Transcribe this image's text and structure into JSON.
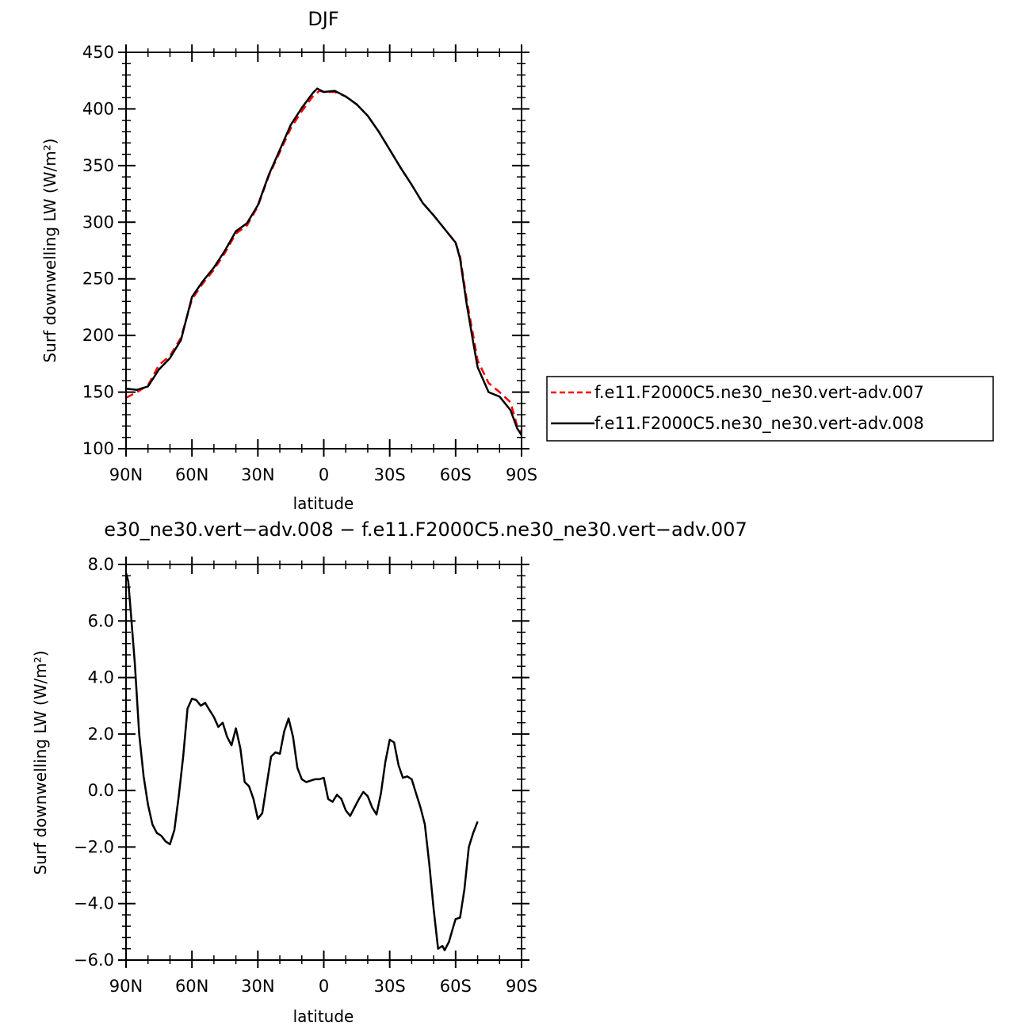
{
  "chart_data": [
    {
      "type": "line",
      "title": "DJF",
      "xlabel": "latitude",
      "ylabel": "Surf downwelling LW (W/m²)",
      "xlim": [
        90,
        -90
      ],
      "ylim": [
        100,
        450
      ],
      "x_ticks": [
        {
          "value": 90,
          "label": "90N"
        },
        {
          "value": 60,
          "label": "60N"
        },
        {
          "value": 30,
          "label": "30N"
        },
        {
          "value": 0,
          "label": "0"
        },
        {
          "value": -30,
          "label": "30S"
        },
        {
          "value": -60,
          "label": "60S"
        },
        {
          "value": -90,
          "label": "90S"
        }
      ],
      "y_ticks": [
        {
          "value": 100,
          "label": "100"
        },
        {
          "value": 150,
          "label": "150"
        },
        {
          "value": 200,
          "label": "200"
        },
        {
          "value": 250,
          "label": "250"
        },
        {
          "value": 300,
          "label": "300"
        },
        {
          "value": 350,
          "label": "350"
        },
        {
          "value": 400,
          "label": "400"
        },
        {
          "value": 450,
          "label": "450"
        }
      ],
      "legend_position": "right",
      "series": [
        {
          "name": "f.e11.F2000C5.ne30_ne30.vert-adv.007",
          "color": "#ff0000",
          "dash": "dashed",
          "points": [
            [
              90,
              145
            ],
            [
              85,
              150
            ],
            [
              80,
              156
            ],
            [
              75,
              174
            ],
            [
              70,
              182
            ],
            [
              65,
              198
            ],
            [
              60,
              232
            ],
            [
              55,
              246
            ],
            [
              50,
              258
            ],
            [
              45,
              273
            ],
            [
              40,
              290
            ],
            [
              35,
              297
            ],
            [
              30,
              314
            ],
            [
              25,
              341
            ],
            [
              20,
              362
            ],
            [
              15,
              383
            ],
            [
              10,
              398
            ],
            [
              5,
              411
            ],
            [
              2,
              416
            ],
            [
              0,
              415
            ],
            [
              -5,
              415
            ],
            [
              -10,
              411
            ],
            [
              -15,
              404
            ],
            [
              -20,
              394
            ],
            [
              -25,
              380
            ],
            [
              -30,
              364
            ],
            [
              -35,
              348
            ],
            [
              -40,
              333
            ],
            [
              -45,
              317
            ],
            [
              -50,
              306
            ],
            [
              -55,
              294
            ],
            [
              -60,
              282
            ],
            [
              -62,
              270
            ],
            [
              -65,
              232
            ],
            [
              -68,
              200
            ],
            [
              -70,
              178
            ],
            [
              -75,
              158
            ],
            [
              -80,
              150
            ],
            [
              -85,
              141
            ],
            [
              -88,
              120
            ],
            [
              -90,
              113
            ]
          ]
        },
        {
          "name": "f.e11.F2000C5.ne30_ne30.vert-adv.008",
          "color": "#000000",
          "dash": "solid",
          "points": [
            [
              90,
              153
            ],
            [
              85,
              152
            ],
            [
              80,
              155
            ],
            [
              75,
              170
            ],
            [
              70,
              180
            ],
            [
              65,
              196
            ],
            [
              60,
              234
            ],
            [
              55,
              248
            ],
            [
              50,
              260
            ],
            [
              45,
              275
            ],
            [
              40,
              292
            ],
            [
              35,
              299
            ],
            [
              30,
              315
            ],
            [
              25,
              342
            ],
            [
              20,
              364
            ],
            [
              15,
              386
            ],
            [
              10,
              401
            ],
            [
              5,
              414
            ],
            [
              3,
              418
            ],
            [
              0,
              415
            ],
            [
              -5,
              416
            ],
            [
              -10,
              411
            ],
            [
              -15,
              404
            ],
            [
              -20,
              394
            ],
            [
              -25,
              380
            ],
            [
              -30,
              364
            ],
            [
              -35,
              348
            ],
            [
              -40,
              333
            ],
            [
              -45,
              317
            ],
            [
              -50,
              306
            ],
            [
              -55,
              294
            ],
            [
              -60,
              282
            ],
            [
              -62,
              268
            ],
            [
              -65,
              228
            ],
            [
              -68,
              194
            ],
            [
              -70,
              172
            ],
            [
              -75,
              150
            ],
            [
              -80,
              146
            ],
            [
              -85,
              134
            ],
            [
              -88,
              118
            ],
            [
              -90,
              112
            ]
          ]
        }
      ]
    },
    {
      "type": "line",
      "title": "e30_ne30.vert−adv.008 − f.e11.F2000C5.ne30_ne30.vert−adv.007",
      "xlabel": "latitude",
      "ylabel": "Surf downwelling LW (W/m²)",
      "xlim": [
        90,
        -90
      ],
      "ylim": [
        -6,
        8
      ],
      "x_ticks": [
        {
          "value": 90,
          "label": "90N"
        },
        {
          "value": 60,
          "label": "60N"
        },
        {
          "value": 30,
          "label": "30N"
        },
        {
          "value": 0,
          "label": "0"
        },
        {
          "value": -30,
          "label": "30S"
        },
        {
          "value": -60,
          "label": "60S"
        },
        {
          "value": -90,
          "label": "90S"
        }
      ],
      "y_ticks": [
        {
          "value": -6,
          "label": "−6.0"
        },
        {
          "value": -4,
          "label": "−4.0"
        },
        {
          "value": -2,
          "label": "−2.0"
        },
        {
          "value": 0,
          "label": "0.0"
        },
        {
          "value": 2,
          "label": "2.0"
        },
        {
          "value": 4,
          "label": "4.0"
        },
        {
          "value": 6,
          "label": "6.0"
        },
        {
          "value": 8,
          "label": "8.0"
        }
      ],
      "series": [
        {
          "color": "#000000",
          "dash": "solid",
          "points": [
            [
              90,
              7.7
            ],
            [
              89,
              7.4
            ],
            [
              88,
              6.5
            ],
            [
              86,
              4.5
            ],
            [
              84,
              2.0
            ],
            [
              82,
              0.5
            ],
            [
              80,
              -0.5
            ],
            [
              78,
              -1.2
            ],
            [
              76,
              -1.5
            ],
            [
              74,
              -1.6
            ],
            [
              72,
              -1.8
            ],
            [
              70,
              -1.9
            ],
            [
              68,
              -1.4
            ],
            [
              66,
              -0.2
            ],
            [
              64,
              1.2
            ],
            [
              62,
              2.9
            ],
            [
              60,
              3.25
            ],
            [
              58,
              3.2
            ],
            [
              56,
              3.0
            ],
            [
              54,
              3.1
            ],
            [
              52,
              2.85
            ],
            [
              50,
              2.6
            ],
            [
              48,
              2.25
            ],
            [
              46,
              2.4
            ],
            [
              44,
              1.9
            ],
            [
              42,
              1.6
            ],
            [
              40,
              2.2
            ],
            [
              38,
              1.5
            ],
            [
              36,
              0.3
            ],
            [
              34,
              0.15
            ],
            [
              32,
              -0.3
            ],
            [
              30,
              -1.0
            ],
            [
              28,
              -0.8
            ],
            [
              26,
              0.2
            ],
            [
              24,
              1.2
            ],
            [
              22,
              1.35
            ],
            [
              20,
              1.3
            ],
            [
              18,
              2.1
            ],
            [
              16,
              2.55
            ],
            [
              14,
              1.9
            ],
            [
              12,
              0.8
            ],
            [
              10,
              0.4
            ],
            [
              8,
              0.3
            ],
            [
              6,
              0.35
            ],
            [
              4,
              0.4
            ],
            [
              2,
              0.4
            ],
            [
              0,
              0.45
            ],
            [
              -2,
              -0.3
            ],
            [
              -4,
              -0.4
            ],
            [
              -6,
              -0.15
            ],
            [
              -8,
              -0.3
            ],
            [
              -10,
              -0.7
            ],
            [
              -12,
              -0.9
            ],
            [
              -14,
              -0.6
            ],
            [
              -16,
              -0.3
            ],
            [
              -18,
              -0.05
            ],
            [
              -20,
              -0.2
            ],
            [
              -22,
              -0.6
            ],
            [
              -24,
              -0.85
            ],
            [
              -26,
              -0.1
            ],
            [
              -28,
              1.0
            ],
            [
              -30,
              1.8
            ],
            [
              -32,
              1.7
            ],
            [
              -34,
              0.9
            ],
            [
              -36,
              0.45
            ],
            [
              -38,
              0.5
            ],
            [
              -40,
              0.4
            ],
            [
              -42,
              -0.1
            ],
            [
              -44,
              -0.6
            ],
            [
              -46,
              -1.2
            ],
            [
              -48,
              -2.6
            ],
            [
              -50,
              -4.2
            ],
            [
              -52,
              -5.6
            ],
            [
              -54,
              -5.5
            ],
            [
              -55,
              -5.65
            ],
            [
              -57,
              -5.35
            ],
            [
              -59,
              -4.8
            ],
            [
              -60,
              -4.55
            ],
            [
              -62,
              -4.5
            ],
            [
              -64,
              -3.5
            ],
            [
              -66,
              -2.0
            ],
            [
              -68,
              -1.5
            ],
            [
              -70,
              -1.1
            ]
          ]
        }
      ]
    }
  ]
}
